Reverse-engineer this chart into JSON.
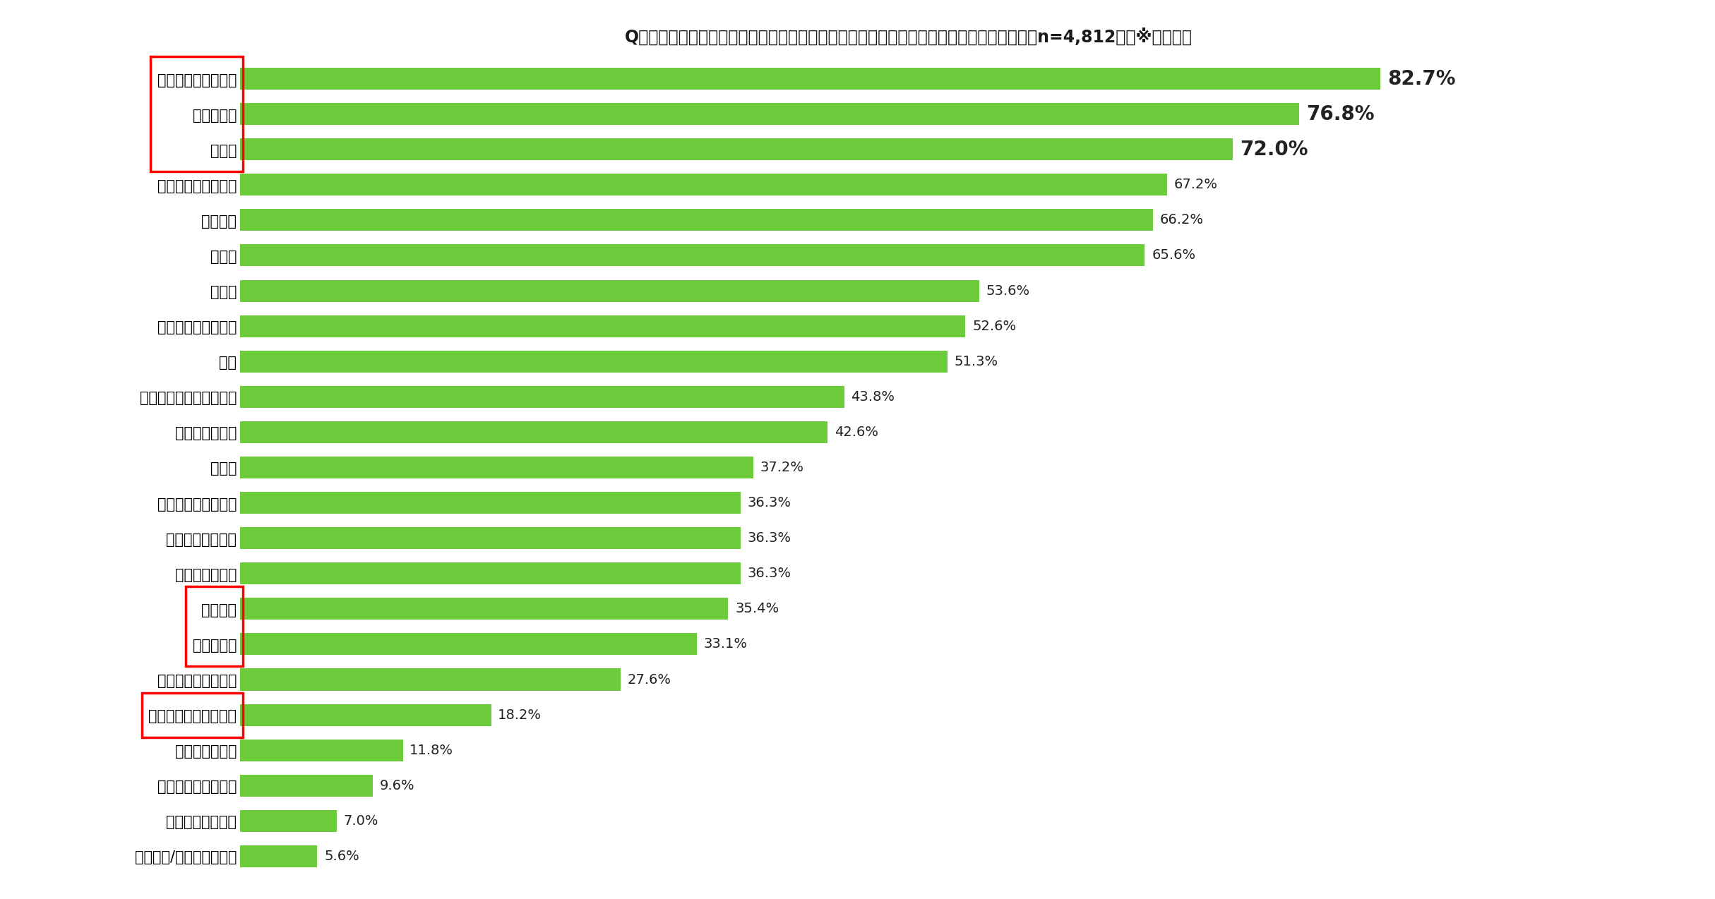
{
  "title": "Q：災害に備え、普段から備蓄している「日用品」を選択肢からすべて教えてください　（n=4,812）　※複数回答",
  "categories": [
    "トイレットペーパー",
    "ティシュー",
    "マスク",
    "ビニール袋、ごみ袋",
    "懐中電灯",
    "乾電池",
    "ラップ",
    "ウエットティシュー",
    "軍手",
    "紙皿、紙コップ、割り箸",
    "カセットボンベ",
    "カイロ",
    "ロープ、ガムテープ",
    "ライター、マッチ",
    "ペーパータオル",
    "生理用品",
    "簡易トイレ",
    "固形燃料、ロウソク",
    "体拭きウエットシート",
    "大人用紙おむつ",
    "ベビー用おしりふき",
    "ベビー用紙おむつ",
    "備蓄なし/上記の備えなし"
  ],
  "values": [
    82.7,
    76.8,
    72.0,
    67.2,
    66.2,
    65.6,
    53.6,
    52.6,
    51.3,
    43.8,
    42.6,
    37.2,
    36.3,
    36.3,
    36.3,
    35.4,
    33.1,
    27.6,
    18.2,
    11.8,
    9.6,
    7.0,
    5.6
  ],
  "bar_color": "#6dcc3c",
  "background_color": "#ffffff",
  "title_fontsize": 17,
  "label_fontsize": 15,
  "value_fontsize": 14,
  "red_box_groups": [
    [
      0,
      1,
      2
    ],
    [
      15,
      16
    ],
    [
      18
    ]
  ],
  "xlim": [
    0,
    97
  ]
}
